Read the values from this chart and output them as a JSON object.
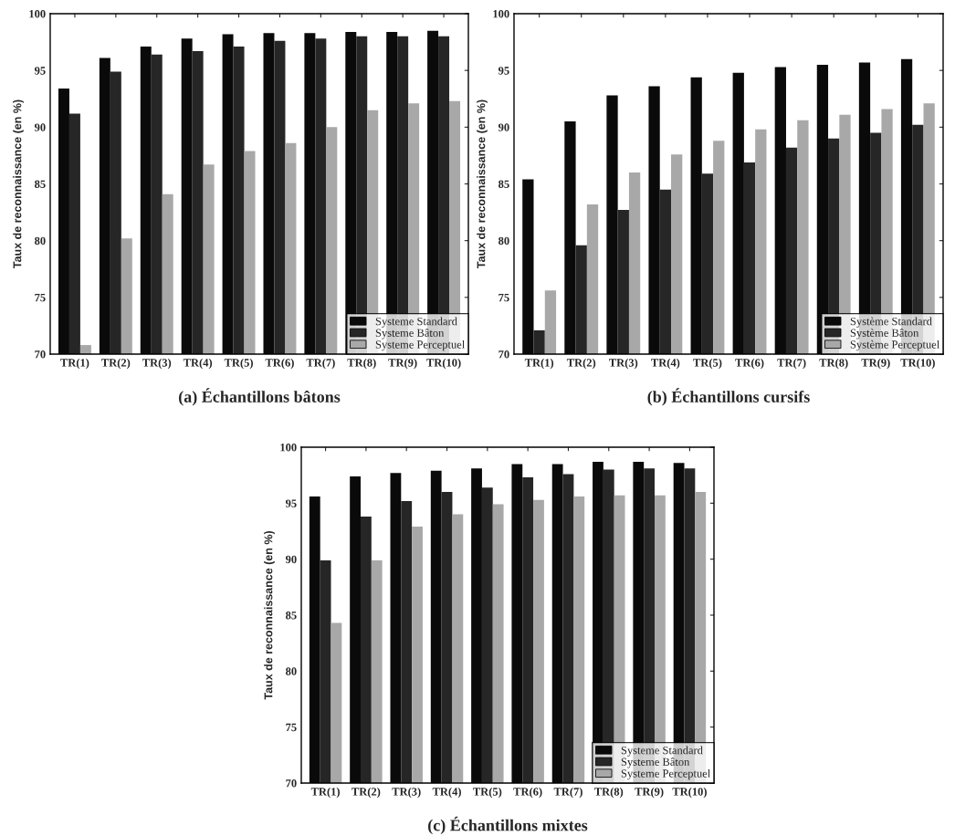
{
  "chart_data": [
    {
      "type": "bar",
      "ylabel": "Taux de reconnaissance (en %)",
      "annotations": [
        "(a) Échantillons bâtons"
      ],
      "categories": [
        "TR(1)",
        "TR(2)",
        "TR(3)",
        "TR(4)",
        "TR(5)",
        "TR(6)",
        "TR(7)",
        "TR(8)",
        "TR(9)",
        "TR(10)"
      ],
      "ylim": [
        70,
        100
      ],
      "yticks": [
        70,
        75,
        80,
        85,
        90,
        95,
        100
      ],
      "legend": "bottom right",
      "grid": false,
      "series": [
        {
          "name": "Systeme Standard",
          "color": "#0a0a0a",
          "values": [
            93.4,
            96.1,
            97.1,
            97.8,
            98.2,
            98.3,
            98.3,
            98.4,
            98.4,
            98.5
          ]
        },
        {
          "name": "Systeme Bâton",
          "color": "#262626",
          "values": [
            91.2,
            94.9,
            96.4,
            96.7,
            97.1,
            97.6,
            97.8,
            98.0,
            98.0,
            98.0
          ]
        },
        {
          "name": "Systeme Perceptuel",
          "color": "#a8a8a8",
          "values": [
            70.8,
            80.2,
            84.1,
            86.7,
            87.9,
            88.6,
            90.0,
            91.5,
            92.1,
            92.3
          ]
        }
      ]
    },
    {
      "type": "bar",
      "ylabel": "Taux de reconnaissance (en %)",
      "annotations": [
        "(b) Échantillons cursifs"
      ],
      "categories": [
        "TR(1)",
        "TR(2)",
        "TR(3)",
        "TR(4)",
        "TR(5)",
        "TR(6)",
        "TR(7)",
        "TR(8)",
        "TR(9)",
        "TR(10)"
      ],
      "ylim": [
        70,
        100
      ],
      "yticks": [
        70,
        75,
        80,
        85,
        90,
        95,
        100
      ],
      "legend": "bottom right",
      "grid": false,
      "series": [
        {
          "name": "Système Standard",
          "color": "#0a0a0a",
          "values": [
            85.4,
            90.5,
            92.8,
            93.6,
            94.4,
            94.8,
            95.3,
            95.5,
            95.7,
            96.0
          ]
        },
        {
          "name": "Système Bâton",
          "color": "#262626",
          "values": [
            72.1,
            79.6,
            82.7,
            84.5,
            85.9,
            86.9,
            88.2,
            89.0,
            89.5,
            90.2
          ]
        },
        {
          "name": "Système Perceptuel",
          "color": "#a8a8a8",
          "values": [
            75.6,
            83.2,
            86.0,
            87.6,
            88.8,
            89.8,
            90.6,
            91.1,
            91.6,
            92.1
          ]
        }
      ]
    },
    {
      "type": "bar",
      "ylabel": "Taux de reconnaissance (en %)",
      "annotations": [
        "(c) Échantillons mixtes"
      ],
      "categories": [
        "TR(1)",
        "TR(2)",
        "TR(3)",
        "TR(4)",
        "TR(5)",
        "TR(6)",
        "TR(7)",
        "TR(8)",
        "TR(9)",
        "TR(10)"
      ],
      "ylim": [
        70,
        100
      ],
      "yticks": [
        70,
        75,
        80,
        85,
        90,
        95,
        100
      ],
      "legend": "bottom right",
      "grid": false,
      "series": [
        {
          "name": "Systeme Standard",
          "color": "#0a0a0a",
          "values": [
            95.6,
            97.4,
            97.7,
            97.9,
            98.1,
            98.5,
            98.5,
            98.7,
            98.7,
            98.6
          ]
        },
        {
          "name": "Systeme Bâton",
          "color": "#262626",
          "values": [
            89.9,
            93.8,
            95.2,
            96.0,
            96.4,
            97.3,
            97.6,
            98.0,
            98.1,
            98.1
          ]
        },
        {
          "name": "Systeme Perceptuel",
          "color": "#a8a8a8",
          "values": [
            84.3,
            89.9,
            92.9,
            94.0,
            94.9,
            95.3,
            95.6,
            95.7,
            95.7,
            96.0
          ]
        }
      ]
    }
  ]
}
